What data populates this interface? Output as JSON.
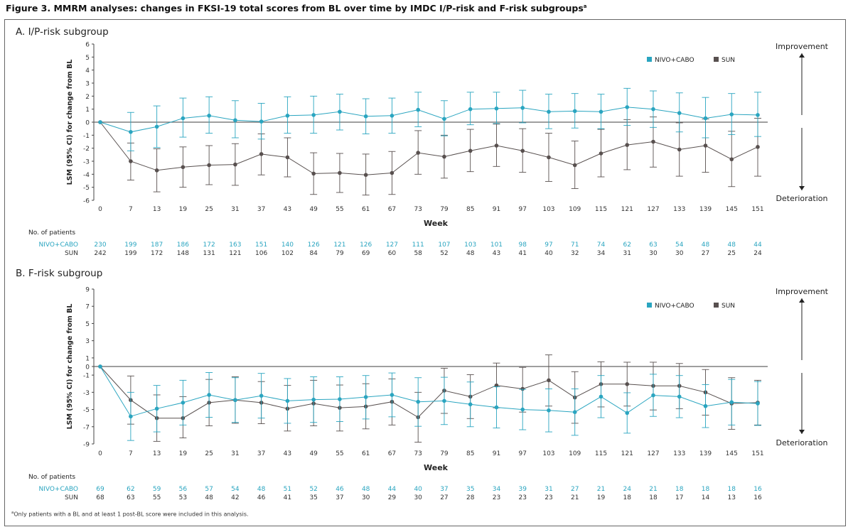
{
  "figure": {
    "title": "Figure 3. MMRM analyses: changes in FKSI-19 total scores from BL over time by IMDC I/P-risk and F-risk subgroups",
    "title_superscript": "a",
    "footnote_marker": "a",
    "footnote": "Only patients with a BL and at least 1 post-BL score were included in this analysis."
  },
  "colors": {
    "nivo_cabo": "#2aa5c0",
    "sun": "#58504f",
    "zero_line": "#666666",
    "axis": "#444444"
  },
  "chart_data": [
    {
      "panel_title": "A. I/P-risk subgroup",
      "type": "line",
      "xlabel": "Week",
      "ylabel": "LSM (95% CI) for change from BL",
      "x": [
        0,
        7,
        13,
        19,
        25,
        31,
        37,
        43,
        49,
        55,
        61,
        67,
        73,
        79,
        85,
        91,
        97,
        103,
        109,
        115,
        121,
        127,
        133,
        139,
        145,
        151
      ],
      "ylim": [
        -6,
        6
      ],
      "yticks": [
        6,
        5,
        4,
        3,
        2,
        1,
        0,
        -1,
        -2,
        -3,
        -4,
        -5,
        -6
      ],
      "legend_position": "top-right",
      "direction_labels": {
        "top": "Improvement",
        "bottom": "Deterioration"
      },
      "series": [
        {
          "name": "NIVO+CABO",
          "color": "#2aa5c0",
          "values": [
            0,
            -0.75,
            -0.35,
            0.3,
            0.5,
            0.15,
            0.05,
            0.5,
            0.55,
            0.8,
            0.45,
            0.5,
            0.95,
            0.25,
            1.0,
            1.05,
            1.1,
            0.8,
            0.85,
            0.8,
            1.15,
            1.0,
            0.7,
            0.3,
            0.6,
            0.55
          ],
          "ci_low": [
            0,
            -2.2,
            -1.95,
            -1.15,
            -0.85,
            -1.2,
            -1.3,
            -0.85,
            -0.85,
            -0.6,
            -0.9,
            -0.85,
            -0.35,
            -1.05,
            -0.2,
            -0.1,
            -0.05,
            -0.5,
            -0.45,
            -0.5,
            -0.25,
            -0.4,
            -0.75,
            -1.2,
            -0.95,
            -1.1
          ],
          "ci_high": [
            0,
            0.75,
            1.25,
            1.85,
            1.95,
            1.65,
            1.45,
            1.95,
            2.0,
            2.15,
            1.8,
            1.85,
            2.3,
            1.65,
            2.3,
            2.3,
            2.45,
            2.15,
            2.2,
            2.15,
            2.6,
            2.4,
            2.25,
            1.9,
            2.2,
            2.3
          ]
        },
        {
          "name": "SUN",
          "color": "#58504f",
          "values": [
            0,
            -3.0,
            -3.7,
            -3.45,
            -3.3,
            -3.25,
            -2.45,
            -2.7,
            -3.95,
            -3.9,
            -4.05,
            -3.9,
            -2.35,
            -2.65,
            -2.2,
            -1.8,
            -2.2,
            -2.7,
            -3.3,
            -2.4,
            -1.75,
            -1.5,
            -2.1,
            -1.8,
            -2.85,
            -1.9
          ],
          "ci_low": [
            0,
            -4.45,
            -5.35,
            -5.0,
            -4.8,
            -4.85,
            -4.05,
            -4.2,
            -5.55,
            -5.4,
            -5.6,
            -5.55,
            -4.0,
            -4.3,
            -3.8,
            -3.4,
            -3.85,
            -4.55,
            -5.1,
            -4.2,
            -3.65,
            -3.45,
            -4.15,
            -3.85,
            -4.95,
            -4.15
          ],
          "ci_high": [
            0,
            -1.6,
            -2.05,
            -1.9,
            -1.8,
            -1.65,
            -0.9,
            -1.2,
            -2.35,
            -2.4,
            -2.45,
            -2.25,
            -0.65,
            -1.0,
            -0.55,
            -0.15,
            -0.5,
            -0.85,
            -1.45,
            -0.55,
            0.2,
            0.4,
            -0.05,
            0.25,
            -0.7,
            0.3
          ]
        }
      ],
      "patients_label": "No. of patients",
      "patients": {
        "NIVO+CABO": [
          230,
          199,
          187,
          186,
          172,
          163,
          151,
          140,
          126,
          121,
          126,
          127,
          111,
          107,
          103,
          101,
          98,
          97,
          71,
          74,
          62,
          63,
          54,
          48,
          48,
          44
        ],
        "SUN": [
          242,
          199,
          172,
          148,
          131,
          121,
          106,
          102,
          84,
          79,
          69,
          60,
          58,
          52,
          48,
          43,
          41,
          40,
          32,
          34,
          31,
          30,
          30,
          27,
          25,
          24
        ]
      }
    },
    {
      "panel_title": "B. F-risk subgroup",
      "type": "line",
      "xlabel": "Week",
      "ylabel": "LSM (95% CI) for change from BL",
      "x": [
        0,
        7,
        13,
        19,
        25,
        31,
        37,
        43,
        49,
        55,
        61,
        67,
        73,
        79,
        85,
        91,
        97,
        103,
        109,
        115,
        121,
        127,
        133,
        139,
        145,
        151
      ],
      "ylim": [
        -9,
        9
      ],
      "yticks": [
        9,
        7,
        5,
        3,
        1,
        0,
        -1,
        -3,
        -5,
        -7,
        -9
      ],
      "legend_position": "top-right",
      "direction_labels": {
        "top": "Improvement",
        "bottom": "Deterioration"
      },
      "series": [
        {
          "name": "NIVO+CABO",
          "color": "#2aa5c0",
          "values": [
            0,
            -5.8,
            -4.9,
            -4.2,
            -3.3,
            -3.9,
            -3.4,
            -4.0,
            -3.85,
            -3.8,
            -3.55,
            -3.3,
            -4.1,
            -4.0,
            -4.4,
            -4.75,
            -5.0,
            -5.1,
            -5.3,
            -3.5,
            -5.4,
            -3.35,
            -3.5,
            -4.6,
            -4.15,
            -4.3
          ],
          "ci_low": [
            0,
            -8.6,
            -7.6,
            -6.8,
            -5.9,
            -6.5,
            -6.0,
            -6.6,
            -6.5,
            -6.4,
            -6.1,
            -5.85,
            -6.95,
            -6.75,
            -7.0,
            -7.15,
            -7.35,
            -7.6,
            -8.0,
            -5.95,
            -7.75,
            -5.8,
            -5.95,
            -7.1,
            -6.8,
            -6.85
          ],
          "ci_high": [
            0,
            -3.0,
            -2.2,
            -1.6,
            -0.7,
            -1.3,
            -0.8,
            -1.4,
            -1.2,
            -1.2,
            -1.05,
            -0.75,
            -1.3,
            -1.25,
            -1.8,
            -2.35,
            -2.65,
            -2.6,
            -2.6,
            -1.05,
            -3.05,
            -0.9,
            -1.05,
            -2.1,
            -1.5,
            -1.75
          ]
        },
        {
          "name": "SUN",
          "color": "#58504f",
          "values": [
            0,
            -3.9,
            -6.0,
            -6.0,
            -4.2,
            -3.9,
            -4.2,
            -4.9,
            -4.3,
            -4.8,
            -4.65,
            -4.1,
            -5.9,
            -2.8,
            -3.5,
            -2.2,
            -2.6,
            -1.6,
            -3.6,
            -2.05,
            -2.05,
            -2.25,
            -2.25,
            -3.0,
            -4.3,
            -4.2
          ],
          "ci_low": [
            0,
            -6.7,
            -8.7,
            -8.3,
            -6.9,
            -6.6,
            -6.65,
            -7.5,
            -6.9,
            -7.5,
            -7.25,
            -6.8,
            -8.8,
            -5.45,
            -6.05,
            -4.8,
            -5.3,
            -4.6,
            -6.6,
            -4.7,
            -4.6,
            -5.05,
            -4.9,
            -5.65,
            -7.3,
            -6.8
          ],
          "ci_high": [
            0,
            -1.1,
            -3.3,
            -3.5,
            -1.5,
            -1.2,
            -1.75,
            -2.2,
            -1.6,
            -2.15,
            -2.0,
            -1.45,
            -3.0,
            -0.2,
            -0.95,
            0.4,
            -0.1,
            1.35,
            -0.6,
            0.55,
            0.5,
            0.5,
            0.35,
            -0.35,
            -1.3,
            -1.6
          ]
        }
      ],
      "patients_label": "No. of patients",
      "patients": {
        "NIVO+CABO": [
          69,
          62,
          59,
          56,
          57,
          54,
          48,
          51,
          52,
          46,
          48,
          44,
          40,
          37,
          35,
          34,
          39,
          31,
          27,
          21,
          24,
          21,
          18,
          18,
          18,
          16
        ],
        "SUN": [
          68,
          63,
          55,
          53,
          48,
          42,
          46,
          41,
          35,
          37,
          30,
          29,
          30,
          27,
          28,
          23,
          23,
          23,
          21,
          19,
          18,
          18,
          17,
          14,
          13,
          16
        ]
      }
    }
  ]
}
